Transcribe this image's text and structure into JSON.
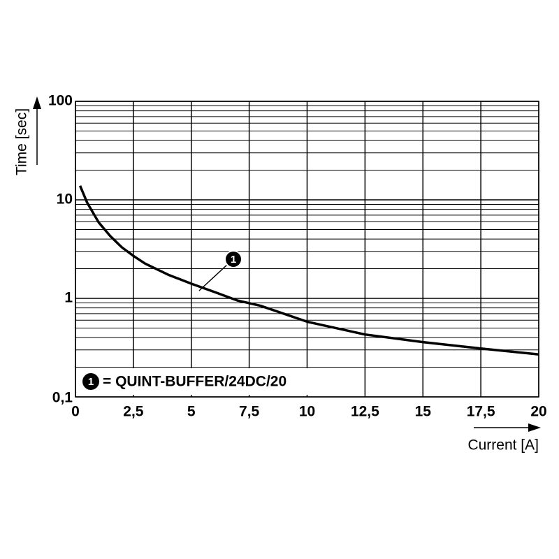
{
  "chart_data": {
    "type": "line",
    "xlabel": "Current [A]",
    "ylabel": "Time [sec]",
    "x": [
      0.2,
      0.5,
      1,
      1.5,
      2,
      2.5,
      3,
      4,
      5,
      6,
      7,
      8,
      10,
      12.5,
      15,
      17.5,
      20
    ],
    "series": [
      {
        "name": "= QUINT-BUFFER/24DC/20",
        "marker": "1",
        "color": "#000000",
        "values": [
          13.9,
          9.4,
          5.9,
          4.3,
          3.3,
          2.7,
          2.26,
          1.74,
          1.41,
          1.16,
          0.95,
          0.84,
          0.58,
          0.43,
          0.36,
          0.31,
          0.27
        ]
      }
    ],
    "xlim": [
      0,
      20
    ],
    "xticks": [
      0,
      {
        "value": 2.5,
        "label": "2,5"
      },
      5,
      {
        "value": 7.5,
        "label": "7,5"
      },
      10,
      {
        "value": 12.5,
        "label": "12,5"
      },
      15,
      {
        "value": 17.5,
        "label": "17,5"
      },
      20
    ],
    "ylim": [
      0.1,
      100
    ],
    "log_y": true,
    "yticks": [
      {
        "value": 0.1,
        "label": "0,1"
      },
      1,
      10,
      100
    ],
    "grid": true
  }
}
